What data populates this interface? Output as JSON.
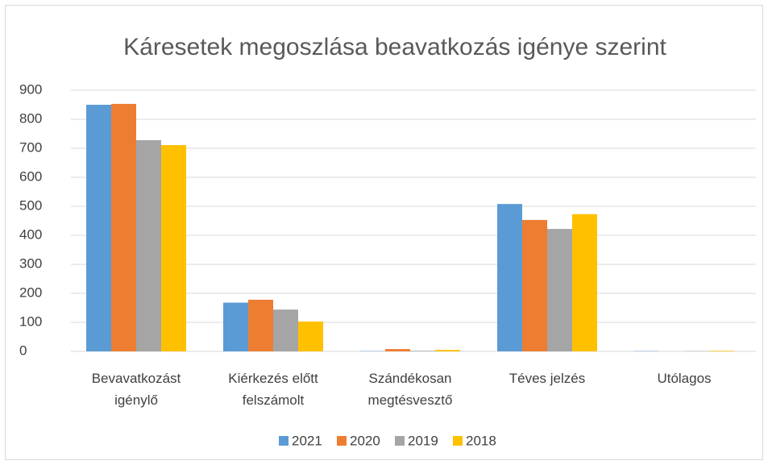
{
  "chart_data": {
    "type": "bar",
    "title": "Káresetek megoszlása beavatkozás igénye szerint",
    "categories": [
      "Bevavatkozást\nigénylő",
      "Kiérkezés előtt\nfelszámolt",
      "Szándékosan\nmegtésvesztő",
      "Téves jelzés",
      "Utólagos"
    ],
    "series": [
      {
        "name": "2021",
        "color": "#5b9bd5",
        "values": [
          850,
          168,
          1,
          508,
          1
        ]
      },
      {
        "name": "2020",
        "color": "#ed7d31",
        "values": [
          853,
          178,
          8,
          453,
          0
        ]
      },
      {
        "name": "2019",
        "color": "#a5a5a5",
        "values": [
          728,
          144,
          2,
          422,
          1
        ]
      },
      {
        "name": "2018",
        "color": "#ffc000",
        "values": [
          711,
          103,
          5,
          473,
          2
        ]
      }
    ],
    "ylim": [
      0,
      900
    ],
    "yticks": [
      0,
      100,
      200,
      300,
      400,
      500,
      600,
      700,
      800,
      900
    ],
    "grid": true,
    "legend": "bottom"
  }
}
